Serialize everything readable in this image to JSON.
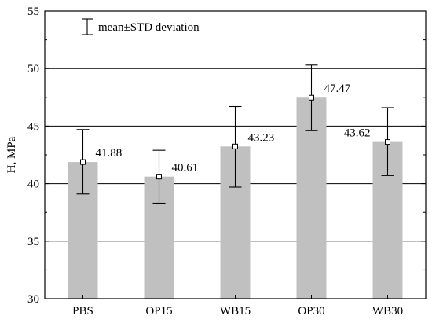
{
  "chart_data": {
    "type": "bar",
    "categories": [
      "PBS",
      "OP15",
      "WB15",
      "OP30",
      "WB30"
    ],
    "values": [
      41.88,
      40.61,
      43.23,
      47.47,
      43.62
    ],
    "error_low": [
      39.1,
      38.3,
      39.7,
      44.6,
      40.7
    ],
    "error_high": [
      44.7,
      42.9,
      46.7,
      50.3,
      46.6
    ],
    "data_labels": [
      "41.88",
      "40.61",
      "43.23",
      "47.47",
      "43.62"
    ],
    "title": "",
    "xlabel": "",
    "ylabel": "H, MPa",
    "ylim": [
      30,
      55
    ],
    "yticks": [
      "30",
      "35",
      "40",
      "45",
      "50",
      "55"
    ],
    "grid": "horizontal at 35, 40, 45, 50",
    "legend": {
      "text": "mean±STD deviation",
      "placement": "top-left"
    },
    "bar_color": "#c0c0c0",
    "marker": "open-square"
  }
}
